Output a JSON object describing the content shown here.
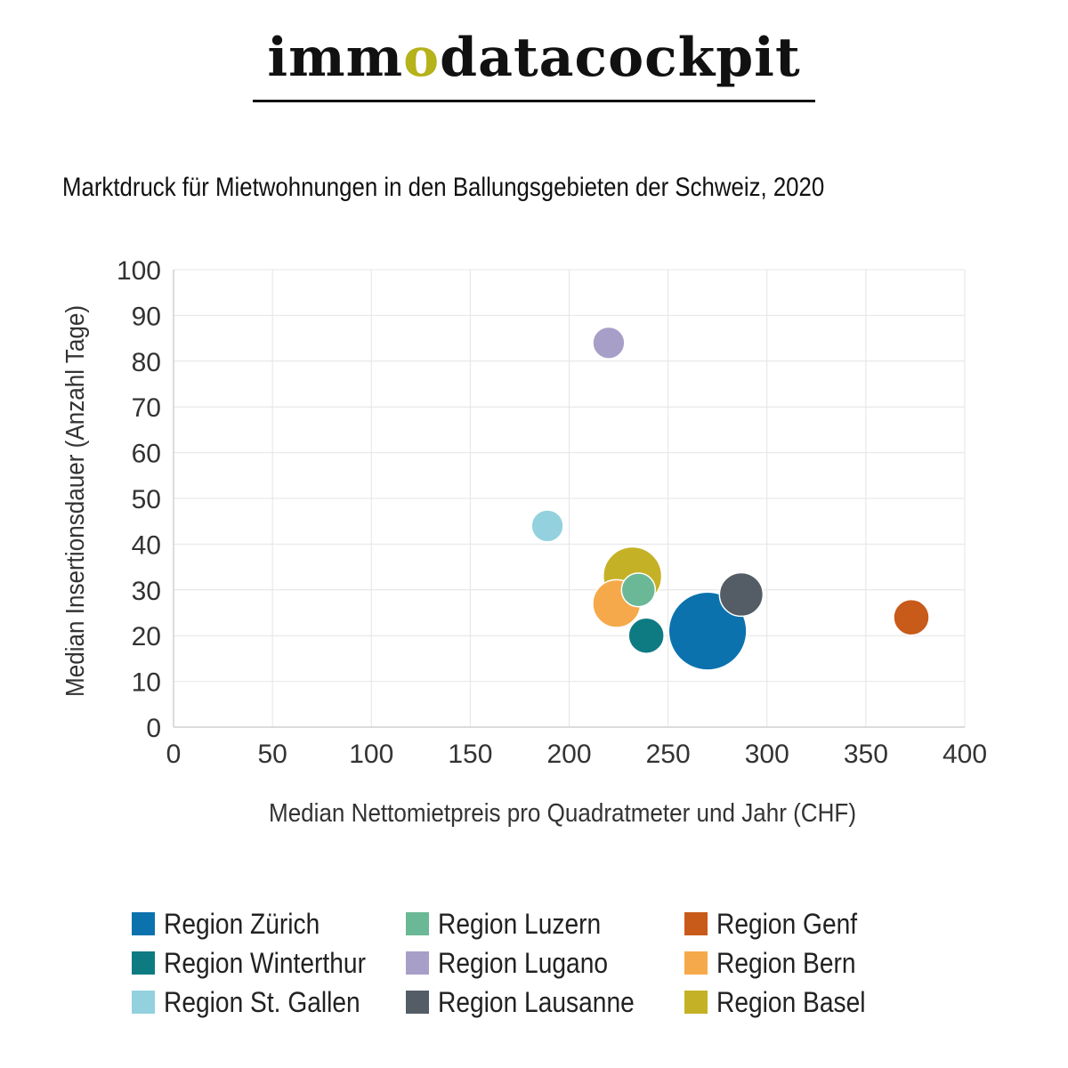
{
  "logo": {
    "prefix": "imm",
    "o": "o",
    "suffix": "datacockpit"
  },
  "chart_data": {
    "type": "bubble",
    "title": "Marktdruck für Mietwohnungen in den Ballungsgebieten der Schweiz, 2020",
    "xlabel": "Median Nettomietpreis pro Quadratmeter und Jahr (CHF)",
    "ylabel": "Median Insertionsdauer (Anzahl Tage)",
    "xlim": [
      0,
      400
    ],
    "ylim": [
      0,
      100
    ],
    "xticks": [
      0,
      50,
      100,
      150,
      200,
      250,
      300,
      350,
      400
    ],
    "yticks": [
      0,
      10,
      20,
      30,
      40,
      50,
      60,
      70,
      80,
      90,
      100
    ],
    "grid": true,
    "legend_position": "bottom",
    "series": [
      {
        "name": "Region Zürich",
        "color": "#0b72ad",
        "x": 270,
        "y": 21,
        "size": 4.8
      },
      {
        "name": "Region Winterthur",
        "color": "#0e7b83",
        "x": 239,
        "y": 20,
        "size": 1.0
      },
      {
        "name": "Region St. Gallen",
        "color": "#93d1de",
        "x": 189,
        "y": 44,
        "size": 0.8
      },
      {
        "name": "Region Luzern",
        "color": "#6bb897",
        "x": 235,
        "y": 30,
        "size": 0.9
      },
      {
        "name": "Region Lugano",
        "color": "#a79fc8",
        "x": 220,
        "y": 84,
        "size": 0.8
      },
      {
        "name": "Region Lausanne",
        "color": "#545d66",
        "x": 287,
        "y": 29,
        "size": 1.5
      },
      {
        "name": "Region Genf",
        "color": "#c85a1a",
        "x": 373,
        "y": 24,
        "size": 1.0
      },
      {
        "name": "Region Bern",
        "color": "#f5a94a",
        "x": 224,
        "y": 27,
        "size": 1.8
      },
      {
        "name": "Region Basel",
        "color": "#c5b126",
        "x": 232,
        "y": 33,
        "size": 2.7
      }
    ]
  }
}
